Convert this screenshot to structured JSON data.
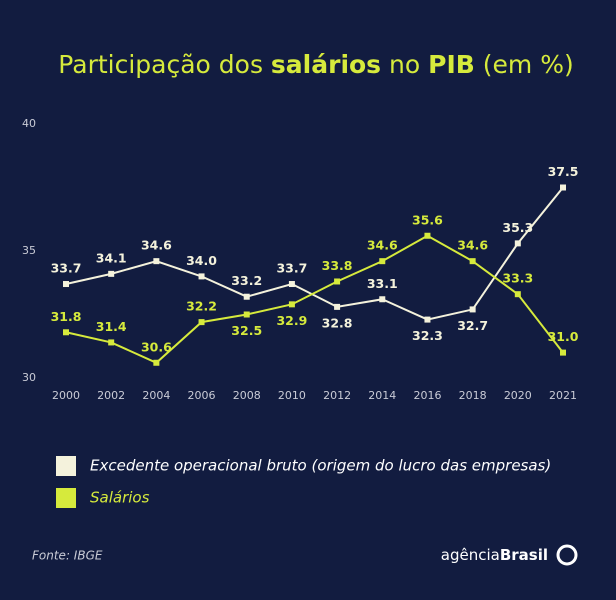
{
  "chart_data": {
    "type": "line",
    "title_parts": [
      "Participação dos ",
      "salários",
      " no ",
      "PIB",
      " (em %)"
    ],
    "categories": [
      "2000",
      "2002",
      "2004",
      "2006",
      "2008",
      "2010",
      "2012",
      "2014",
      "2016",
      "2018",
      "2020",
      "2021"
    ],
    "series": [
      {
        "name": "Excedente operacional bruto (origem do lucro das empresas)",
        "color": "#f4f2dc",
        "values": [
          33.7,
          34.1,
          34.6,
          34.0,
          33.2,
          33.7,
          32.8,
          33.1,
          32.3,
          32.7,
          35.3,
          37.5
        ],
        "value_labels": [
          "33.7",
          "34.1",
          "34.6",
          "34.0",
          "33.2",
          "33.7",
          "32.8",
          "33.1",
          "32.3",
          "32.7",
          "35.3",
          "37.5"
        ]
      },
      {
        "name": "Salários",
        "color": "#d6ea3c",
        "values": [
          31.8,
          31.4,
          30.6,
          32.2,
          32.5,
          32.9,
          33.8,
          34.6,
          35.6,
          34.6,
          33.3,
          31.0
        ],
        "value_labels": [
          "31.8",
          "31.4",
          "30.6",
          "32.2",
          "32.5",
          "32.9",
          "33.8",
          "34.6",
          "35.6",
          "34.6",
          "33.3",
          "31.0"
        ]
      }
    ],
    "ylim": [
      30,
      40
    ],
    "yticks": [
      30,
      35,
      40
    ],
    "grid": false,
    "source": "Fonte: IBGE",
    "brand": {
      "light": "agência",
      "bold": "Brasil"
    }
  }
}
